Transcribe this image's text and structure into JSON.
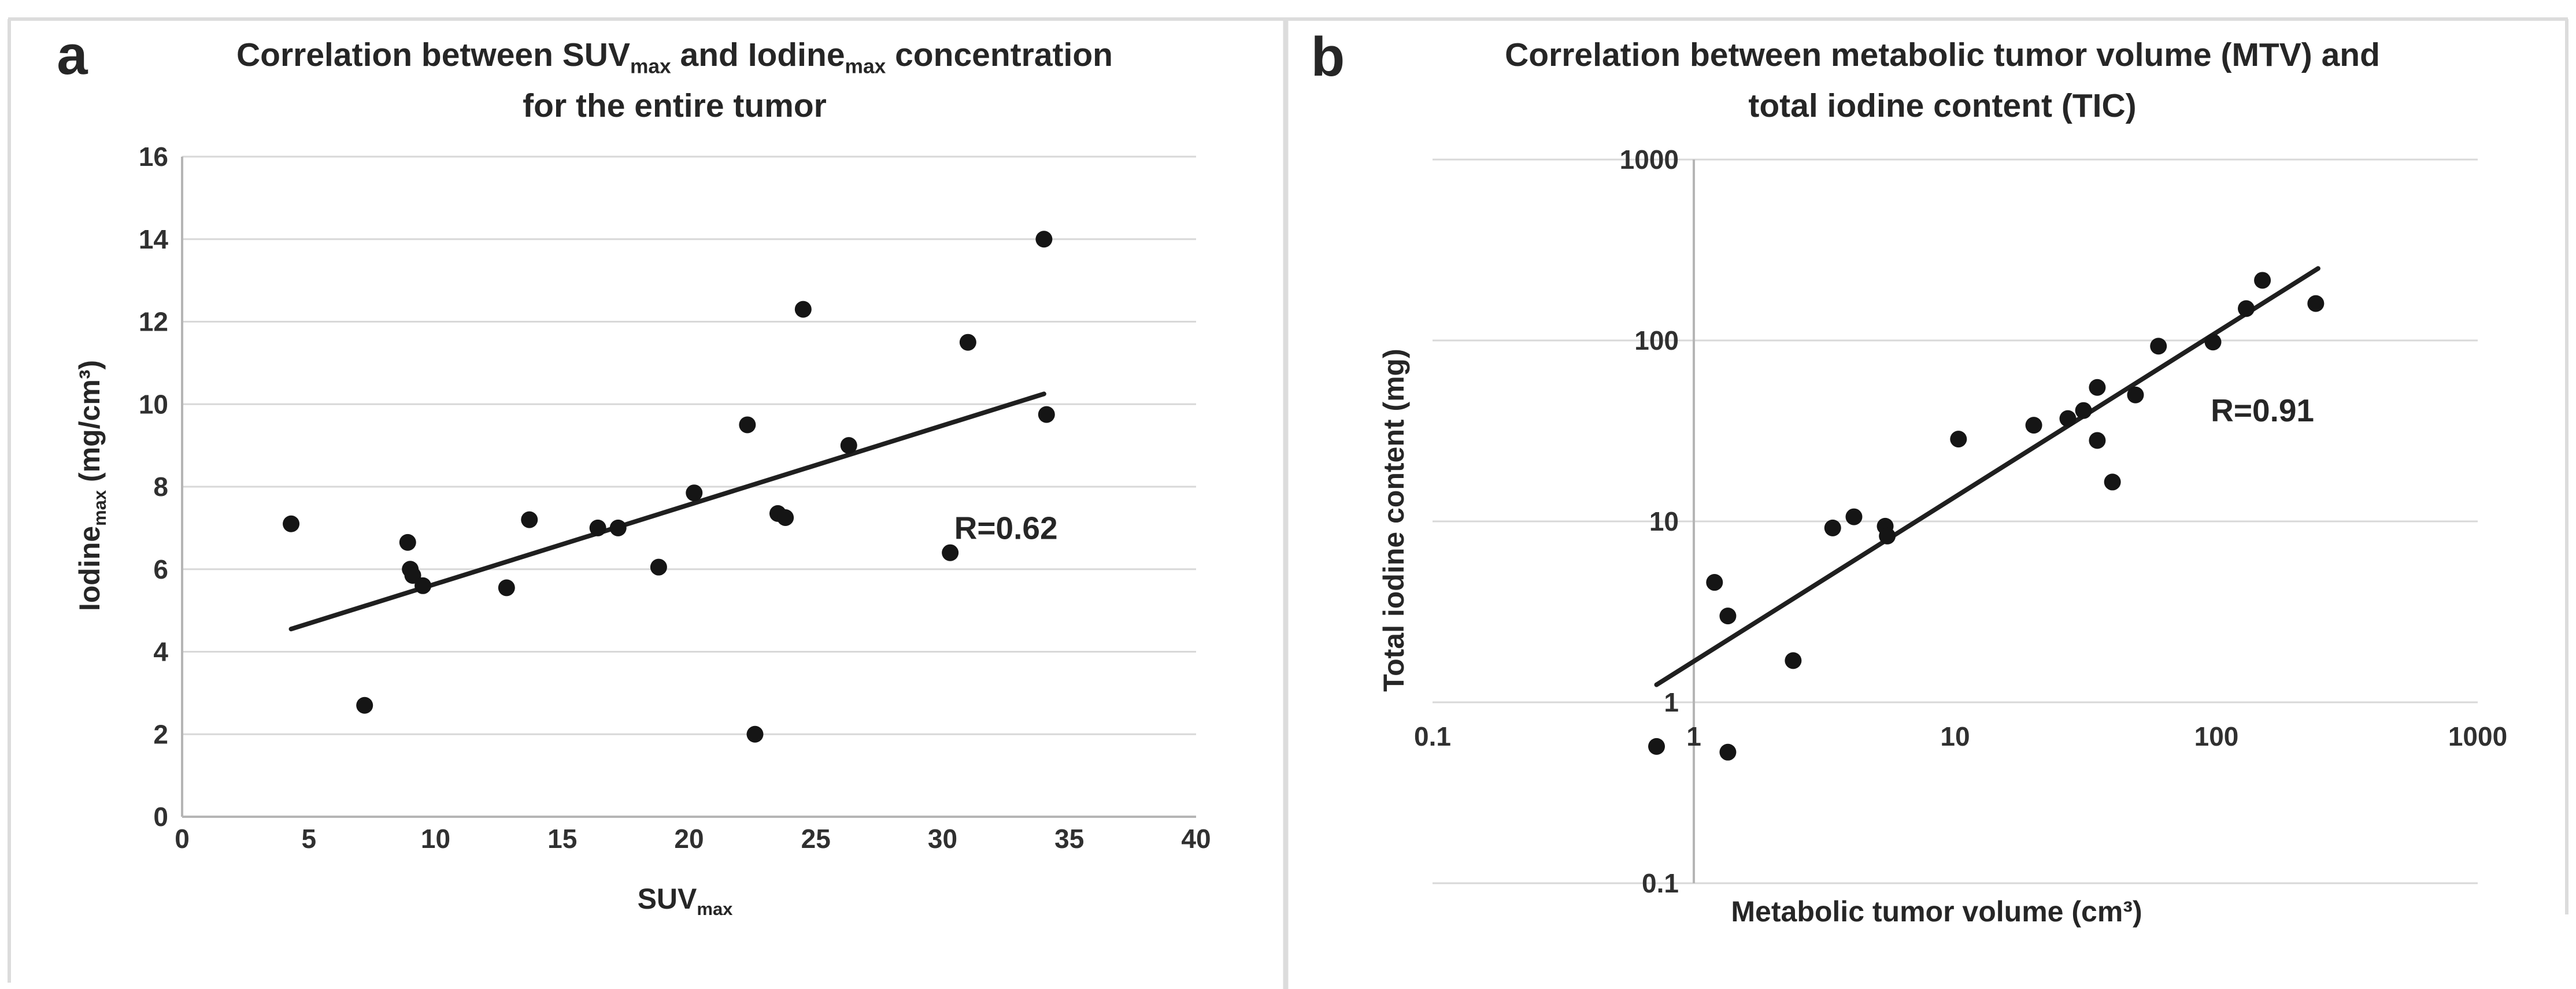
{
  "figure": {
    "panels": [
      {
        "label": "a"
      },
      {
        "label": "b"
      }
    ],
    "colors": {
      "text": "#262626",
      "tick_text": "#303030",
      "gridline": "#d8d8d8",
      "axis_line": "#b5b5b5",
      "point": "#151515",
      "trendline": "#1f1f1f",
      "frame": "#dcdcdc",
      "background": "#ffffff"
    }
  },
  "chart_data": [
    {
      "type": "scatter",
      "panel": "a",
      "title_lines": [
        [
          {
            "text": "Correlation between SUV"
          },
          {
            "text": "max",
            "sub": true
          },
          {
            "text": " and Iodine"
          },
          {
            "text": "max",
            "sub": true
          },
          {
            "text": " concentration"
          }
        ],
        [
          {
            "text": "for the entire tumor"
          }
        ]
      ],
      "xlabel_parts": [
        {
          "text": "SUV"
        },
        {
          "text": "max",
          "sub": true
        }
      ],
      "ylabel_parts": [
        {
          "text": "Iodine"
        },
        {
          "text": "max",
          "sub": true
        },
        {
          "text": " (mg/cm³)"
        }
      ],
      "x_scale": "linear",
      "y_scale": "linear",
      "xlim": [
        0,
        40
      ],
      "ylim": [
        0,
        16
      ],
      "x_ticks": [
        0,
        5,
        10,
        15,
        20,
        25,
        30,
        35,
        40
      ],
      "y_ticks": [
        0,
        2,
        4,
        6,
        8,
        10,
        12,
        14,
        16
      ],
      "grid": "horizontal",
      "legend": "none",
      "points": [
        [
          4.3,
          7.1
        ],
        [
          7.2,
          2.7
        ],
        [
          8.9,
          6.65
        ],
        [
          9.0,
          6.0
        ],
        [
          9.1,
          5.85
        ],
        [
          9.5,
          5.6
        ],
        [
          12.8,
          5.55
        ],
        [
          13.7,
          7.2
        ],
        [
          16.4,
          7.0
        ],
        [
          17.2,
          7.0
        ],
        [
          18.8,
          6.05
        ],
        [
          20.2,
          7.85
        ],
        [
          22.3,
          9.5
        ],
        [
          22.6,
          2.0
        ],
        [
          23.5,
          7.35
        ],
        [
          23.8,
          7.25
        ],
        [
          24.5,
          12.3
        ],
        [
          26.3,
          9.0
        ],
        [
          30.3,
          6.4
        ],
        [
          31.0,
          11.5
        ],
        [
          34.0,
          14.0
        ],
        [
          34.1,
          9.75
        ]
      ],
      "trendline": {
        "x1": 4.3,
        "y1": 4.55,
        "x2": 34.0,
        "y2": 10.25
      },
      "annotation": {
        "text": "R=0.62",
        "x": 32.5,
        "y": 7.0
      }
    },
    {
      "type": "scatter",
      "panel": "b",
      "title_lines": [
        [
          {
            "text": "Correlation between metabolic tumor volume (MTV) and"
          }
        ],
        [
          {
            "text": "total iodine content (TIC)"
          }
        ]
      ],
      "xlabel_parts": [
        {
          "text": "Metabolic tumor volume (cm³)"
        }
      ],
      "ylabel_parts": [
        {
          "text": "Total iodine content (mg)"
        }
      ],
      "x_scale": "log",
      "y_scale": "log",
      "xlim": [
        0.1,
        1000
      ],
      "ylim": [
        0.1,
        1000
      ],
      "x_ticks": [
        0.1,
        1,
        10,
        100,
        1000
      ],
      "y_ticks": [
        0.1,
        1,
        10,
        100,
        1000
      ],
      "grid": "horizontal",
      "legend": "none",
      "y_axis_at_x": 1,
      "points": [
        [
          0.72,
          0.57
        ],
        [
          1.35,
          0.53
        ],
        [
          1.2,
          4.6
        ],
        [
          1.35,
          3.0
        ],
        [
          2.4,
          1.7
        ],
        [
          3.4,
          9.2
        ],
        [
          4.1,
          10.6
        ],
        [
          5.4,
          9.4
        ],
        [
          5.5,
          8.3
        ],
        [
          10.3,
          28.5
        ],
        [
          20,
          34
        ],
        [
          27,
          37
        ],
        [
          31,
          41
        ],
        [
          35,
          55
        ],
        [
          35,
          28
        ],
        [
          40,
          16.5
        ],
        [
          49,
          50
        ],
        [
          60,
          93
        ],
        [
          97,
          98
        ],
        [
          130,
          150
        ],
        [
          150,
          215
        ],
        [
          240,
          160
        ]
      ],
      "trendline": {
        "x1": 0.72,
        "y1": 1.25,
        "x2": 245,
        "y2": 250
      },
      "annotation": {
        "text": "R=0.91",
        "x": 150,
        "y": 41
      }
    }
  ]
}
